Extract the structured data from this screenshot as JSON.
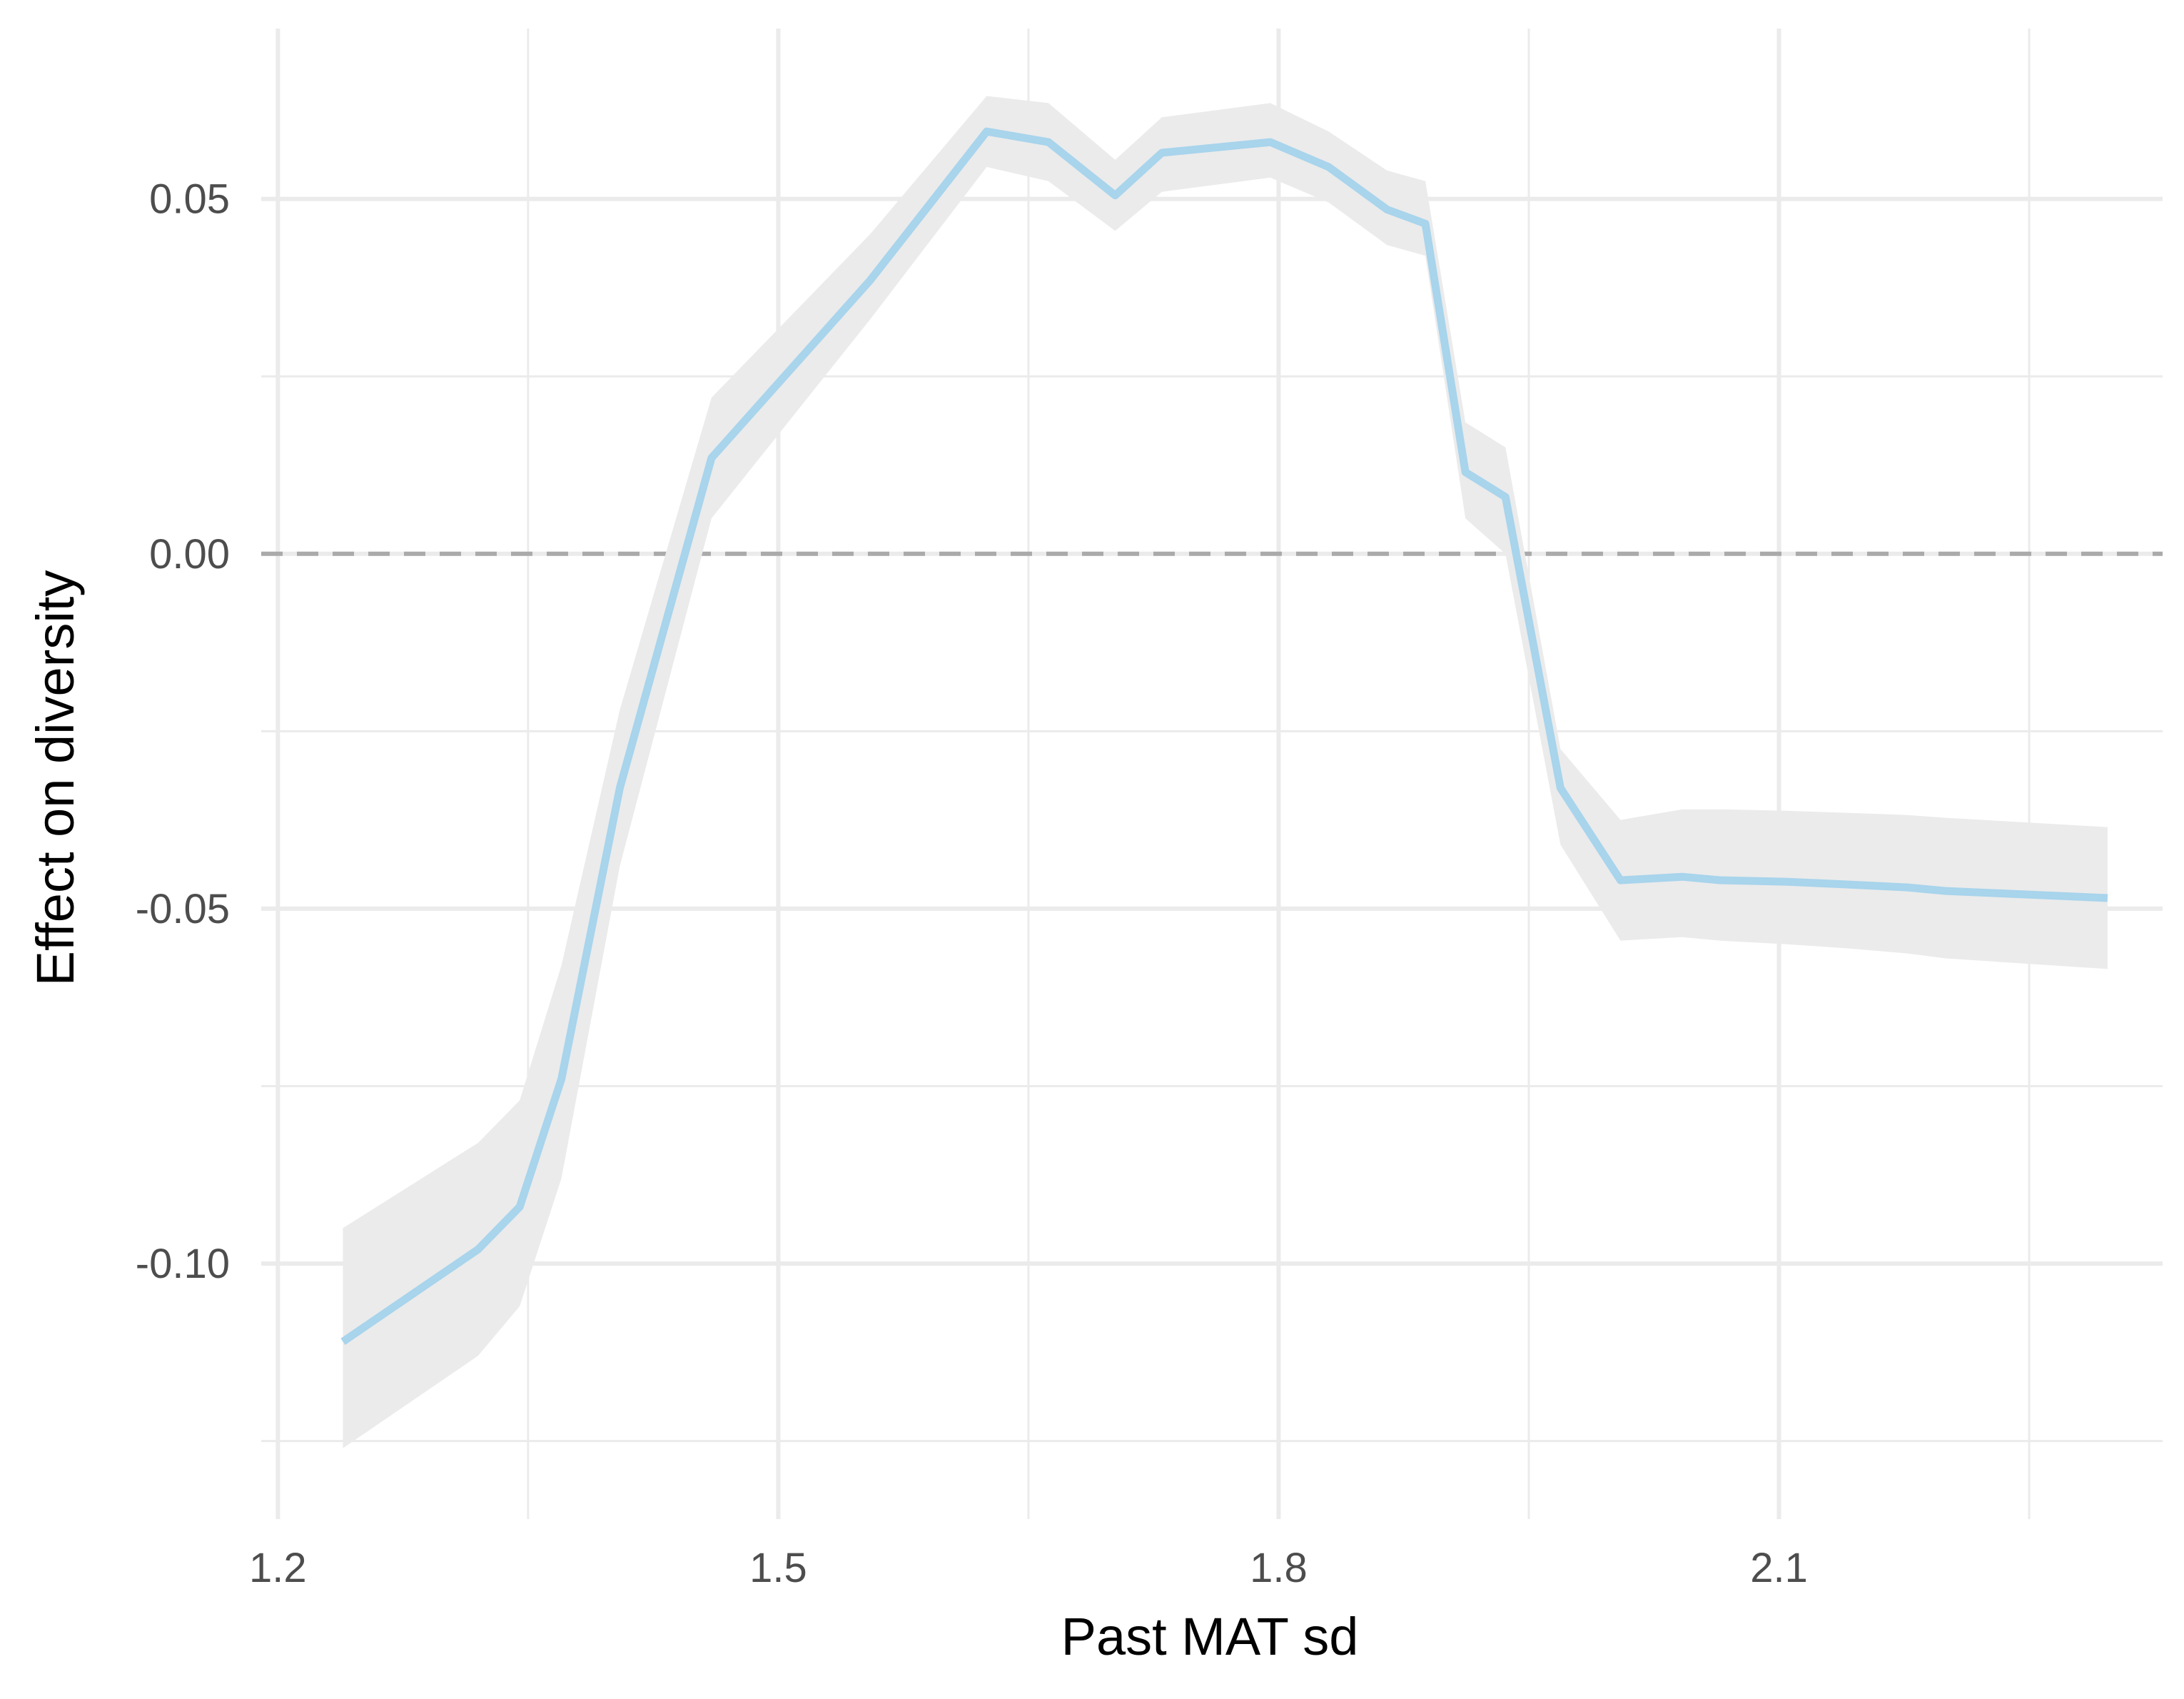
{
  "chart_data": {
    "type": "line",
    "xlabel": "Past MAT sd",
    "ylabel": "Effect on diversity",
    "xlim": [
      1.19,
      2.33
    ],
    "ylim": [
      -0.136,
      0.074
    ],
    "x_ticks": [
      {
        "value": 1.2,
        "label": "1.2"
      },
      {
        "value": 1.5,
        "label": "1.5"
      },
      {
        "value": 1.8,
        "label": "1.8"
      },
      {
        "value": 2.1,
        "label": "2.1"
      }
    ],
    "x_minor_ticks": [
      1.35,
      1.65,
      1.95,
      2.25
    ],
    "y_ticks": [
      {
        "value": -0.1,
        "label": "-0.10"
      },
      {
        "value": -0.05,
        "label": "-0.05"
      },
      {
        "value": 0.0,
        "label": "0.00"
      },
      {
        "value": 0.05,
        "label": "0.05"
      }
    ],
    "y_minor_ticks": [
      -0.125,
      -0.075,
      -0.025,
      0.025
    ],
    "reference_line": {
      "y": 0,
      "style": "dashed",
      "color": "#aaaaaa"
    },
    "grid": true,
    "series": [
      {
        "color": "#a8d4ec",
        "band_color": "#ebebeb",
        "x": [
          1.239,
          1.32,
          1.345,
          1.37,
          1.405,
          1.46,
          1.555,
          1.625,
          1.662,
          1.702,
          1.73,
          1.795,
          1.83,
          1.865,
          1.888,
          1.912,
          1.936,
          1.969,
          2.005,
          2.042,
          2.065,
          2.104,
          2.142,
          2.177,
          2.2,
          2.297
        ],
        "y": [
          -0.111,
          -0.098,
          -0.092,
          -0.074,
          -0.033,
          0.0135,
          0.0385,
          0.0595,
          0.058,
          0.0505,
          0.0565,
          0.058,
          0.0545,
          0.0485,
          0.0465,
          0.0115,
          0.008,
          -0.033,
          -0.046,
          -0.0455,
          -0.046,
          -0.0462,
          -0.0466,
          -0.047,
          -0.0475,
          -0.0485
        ],
        "lower": [
          -0.126,
          -0.113,
          -0.106,
          -0.088,
          -0.044,
          0.005,
          0.033,
          0.0545,
          0.0525,
          0.0455,
          0.051,
          0.053,
          0.0495,
          0.0435,
          0.042,
          0.005,
          0.0,
          -0.041,
          -0.0545,
          -0.054,
          -0.0545,
          -0.055,
          -0.0556,
          -0.0563,
          -0.057,
          -0.0585
        ],
        "upper": [
          -0.095,
          -0.083,
          -0.077,
          -0.058,
          -0.022,
          0.022,
          0.045,
          0.0645,
          0.0635,
          0.0555,
          0.0615,
          0.0635,
          0.0595,
          0.054,
          0.0525,
          0.0185,
          0.015,
          -0.0275,
          -0.0375,
          -0.036,
          -0.036,
          -0.0362,
          -0.0365,
          -0.0368,
          -0.0372,
          -0.0385
        ]
      }
    ]
  }
}
